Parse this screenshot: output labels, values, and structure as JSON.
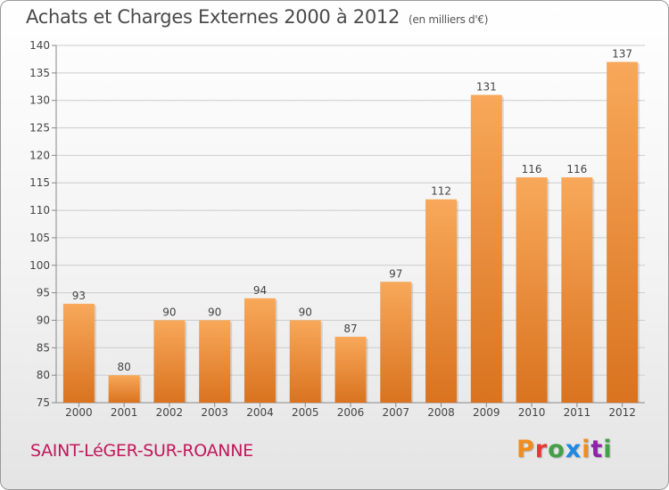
{
  "header": {
    "title": "Achats et Charges Externes 2000 à 2012",
    "unit": "(en milliers d'€)"
  },
  "footer": {
    "commune": "SAINT-LéGER-SUR-ROANNE",
    "logo": "Proxiti"
  },
  "colors": {
    "bar_top": "#f8a85a",
    "bar_bottom": "#d9731f",
    "grid": "#cccccc",
    "commune_text": "#c2185b",
    "logo_letters": [
      "#f28c1c",
      "#e53935",
      "#43a047",
      "#1e88e5",
      "#f28c1c",
      "#8e24aa",
      "#43a047"
    ]
  },
  "chart_data": {
    "type": "bar",
    "categories": [
      "2000",
      "2001",
      "2002",
      "2003",
      "2004",
      "2005",
      "2006",
      "2007",
      "2008",
      "2009",
      "2010",
      "2011",
      "2012"
    ],
    "values": [
      93,
      80,
      90,
      90,
      94,
      90,
      87,
      97,
      112,
      131,
      116,
      116,
      137
    ],
    "ylim": [
      75,
      140
    ],
    "yticks": [
      75,
      80,
      85,
      90,
      95,
      100,
      105,
      110,
      115,
      120,
      125,
      130,
      135,
      140
    ],
    "grid": true,
    "data_labels": true
  }
}
